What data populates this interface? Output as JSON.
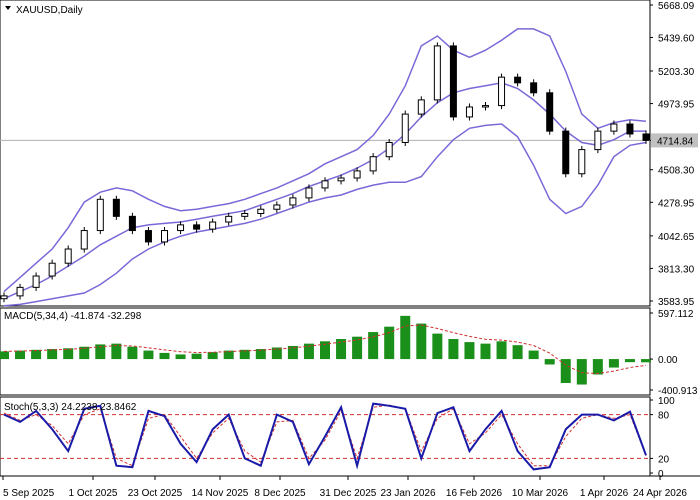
{
  "chart_data": {
    "type": "line",
    "title": "XAUUSD,Daily",
    "x_labels": [
      "5 Sep 2025",
      "1 Oct 2025",
      "23 Oct 2025",
      "14 Nov 2025",
      "8 Dec 2025",
      "31 Dec 2025",
      "23 Jan 2026",
      "16 Feb 2026",
      "10 Mar 2026",
      "1 Apr 2026",
      "24 Apr 2026"
    ],
    "price_panel": {
      "ylim": [
        3583.95,
        5668.09
      ],
      "yticks": [
        "5668.09",
        "5439.60",
        "5203.30",
        "4973.95",
        "4714.84",
        "4508.30",
        "4278.95",
        "4042.65",
        "3813.30",
        "3583.95"
      ],
      "current_price": 4714.84,
      "bollinger_middle": [
        3600,
        3650,
        3700,
        3760,
        3830,
        3900,
        3980,
        4040,
        4100,
        4120,
        4130,
        4140,
        4160,
        4180,
        4200,
        4220,
        4260,
        4300,
        4340,
        4390,
        4430,
        4470,
        4520,
        4580,
        4660,
        4760,
        4880,
        4980,
        5050,
        5080,
        5100,
        5120,
        5080,
        5000,
        4900,
        4780,
        4700,
        4680,
        4720,
        4780,
        4780
      ],
      "bollinger_upper": [
        3650,
        3750,
        3850,
        3950,
        4100,
        4280,
        4350,
        4380,
        4360,
        4300,
        4250,
        4220,
        4230,
        4250,
        4270,
        4300,
        4340,
        4380,
        4430,
        4480,
        4550,
        4600,
        4650,
        4750,
        4900,
        5100,
        5380,
        5450,
        5350,
        5300,
        5350,
        5420,
        5500,
        5500,
        5450,
        5200,
        4900,
        4800,
        4840,
        4860,
        4850
      ],
      "bollinger_lower": [
        3550,
        3560,
        3580,
        3600,
        3620,
        3640,
        3700,
        3780,
        3880,
        3950,
        4000,
        4040,
        4070,
        4090,
        4110,
        4130,
        4160,
        4200,
        4240,
        4280,
        4310,
        4330,
        4370,
        4400,
        4420,
        4420,
        4460,
        4600,
        4720,
        4800,
        4820,
        4830,
        4740,
        4540,
        4300,
        4200,
        4250,
        4400,
        4600,
        4680,
        4700
      ],
      "close": [
        3620,
        3680,
        3760,
        3850,
        3950,
        4080,
        4300,
        4180,
        4080,
        4000,
        4080,
        4120,
        4090,
        4140,
        4180,
        4200,
        4230,
        4260,
        4310,
        4380,
        4430,
        4450,
        4500,
        4600,
        4700,
        4900,
        5000,
        5380,
        4880,
        4950,
        4960,
        5160,
        5120,
        5050,
        4780,
        4480,
        4650,
        4780,
        4830,
        4760,
        4714.84
      ]
    },
    "macd_panel": {
      "label": "MACD(5,34,4) -41.874 -32.298",
      "yticks": [
        "597.112",
        "0.00",
        "-400.913"
      ],
      "histogram": [
        100,
        110,
        120,
        130,
        140,
        160,
        190,
        200,
        160,
        110,
        80,
        60,
        70,
        90,
        110,
        120,
        130,
        150,
        170,
        200,
        230,
        260,
        290,
        350,
        420,
        560,
        460,
        330,
        260,
        220,
        200,
        230,
        180,
        110,
        -70,
        -310,
        -330,
        -200,
        -110,
        -40,
        -42
      ]
    },
    "stoch_panel": {
      "label": "Stoch(5,3,3) 24.2238 23.8462",
      "yticks": [
        "100",
        "80",
        "20",
        "0"
      ],
      "levels": [
        80,
        20
      ],
      "main": [
        80,
        70,
        85,
        60,
        30,
        88,
        92,
        10,
        8,
        85,
        78,
        40,
        15,
        60,
        80,
        20,
        10,
        80,
        70,
        12,
        50,
        90,
        10,
        95,
        92,
        88,
        20,
        82,
        90,
        30,
        60,
        85,
        30,
        5,
        8,
        60,
        80,
        80,
        72,
        84,
        24.2238
      ],
      "signal": [
        82,
        72,
        80,
        65,
        40,
        80,
        88,
        20,
        10,
        75,
        80,
        50,
        20,
        55,
        75,
        30,
        15,
        70,
        72,
        20,
        45,
        85,
        20,
        90,
        93,
        88,
        30,
        75,
        88,
        40,
        55,
        80,
        40,
        10,
        10,
        50,
        75,
        80,
        75,
        80,
        23.8462
      ]
    }
  }
}
